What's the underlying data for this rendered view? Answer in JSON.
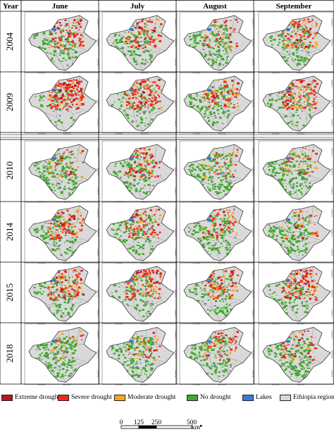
{
  "header": {
    "year_label": "Year",
    "months": [
      "June",
      "July",
      "August",
      "September"
    ]
  },
  "years": [
    "2004",
    "2009",
    "2010",
    "2014",
    "2015",
    "2018"
  ],
  "map_ticks": {
    "lon": [
      "35°0'0\"E",
      "40°0'0\"E"
    ],
    "lat": [
      "15°0'0\"N",
      "10°0'0\"N",
      "5°0'0\"N"
    ]
  },
  "legend": [
    {
      "label": "Extreme drought",
      "color": "#b5181b"
    },
    {
      "label": "Severe drought",
      "color": "#f22a1f"
    },
    {
      "label": "Moderate drought",
      "color": "#f5a623"
    },
    {
      "label": "No drought",
      "color": "#3faa2a"
    },
    {
      "label": "Lakes",
      "color": "#3c78d8"
    },
    {
      "label": "Ethiopia regions",
      "color": "#d9d9d9"
    }
  ],
  "scale_bar": {
    "ticks": [
      "0",
      "125",
      "250",
      "500"
    ],
    "unit": "km"
  },
  "drought_maps": [
    {
      "year": "2004",
      "months": [
        {
          "green": 0.6,
          "orange": 0.1,
          "red": 0.2,
          "darkred": 0.08
        },
        {
          "green": 0.55,
          "orange": 0.12,
          "red": 0.22,
          "darkred": 0.06
        },
        {
          "green": 0.75,
          "orange": 0.1,
          "red": 0.1,
          "darkred": 0.02
        },
        {
          "green": 0.55,
          "orange": 0.15,
          "red": 0.22,
          "darkred": 0.05
        }
      ]
    },
    {
      "year": "2009",
      "months": [
        {
          "green": 0.3,
          "orange": 0.15,
          "red": 0.4,
          "darkred": 0.15
        },
        {
          "green": 0.4,
          "orange": 0.15,
          "red": 0.35,
          "darkred": 0.08
        },
        {
          "green": 0.6,
          "orange": 0.15,
          "red": 0.2,
          "darkred": 0.04
        },
        {
          "green": 0.45,
          "orange": 0.15,
          "red": 0.3,
          "darkred": 0.07
        }
      ]
    },
    {
      "year": "2010",
      "months": [
        {
          "green": 0.75,
          "orange": 0.1,
          "red": 0.1,
          "darkred": 0.03
        },
        {
          "green": 0.65,
          "orange": 0.12,
          "red": 0.18,
          "darkred": 0.04
        },
        {
          "green": 0.8,
          "orange": 0.08,
          "red": 0.08,
          "darkred": 0.02
        },
        {
          "green": 0.8,
          "orange": 0.08,
          "red": 0.08,
          "darkred": 0.02
        }
      ]
    },
    {
      "year": "2014",
      "months": [
        {
          "green": 0.55,
          "orange": 0.15,
          "red": 0.25,
          "darkred": 0.05
        },
        {
          "green": 0.6,
          "orange": 0.12,
          "red": 0.22,
          "darkred": 0.05
        },
        {
          "green": 0.7,
          "orange": 0.12,
          "red": 0.15,
          "darkred": 0.03
        },
        {
          "green": 0.8,
          "orange": 0.08,
          "red": 0.08,
          "darkred": 0.02
        }
      ]
    },
    {
      "year": "2015",
      "months": [
        {
          "green": 0.55,
          "orange": 0.15,
          "red": 0.25,
          "darkred": 0.05
        },
        {
          "green": 0.5,
          "orange": 0.15,
          "red": 0.28,
          "darkred": 0.06
        },
        {
          "green": 0.6,
          "orange": 0.15,
          "red": 0.22,
          "darkred": 0.05
        },
        {
          "green": 0.45,
          "orange": 0.15,
          "red": 0.3,
          "darkred": 0.08
        }
      ]
    },
    {
      "year": "2018",
      "months": [
        {
          "green": 0.85,
          "orange": 0.07,
          "red": 0.05,
          "darkred": 0.01
        },
        {
          "green": 0.8,
          "orange": 0.08,
          "red": 0.08,
          "darkred": 0.02
        },
        {
          "green": 0.7,
          "orange": 0.1,
          "red": 0.15,
          "darkred": 0.04
        },
        {
          "green": 0.75,
          "orange": 0.1,
          "red": 0.12,
          "darkred": 0.03
        }
      ]
    }
  ]
}
